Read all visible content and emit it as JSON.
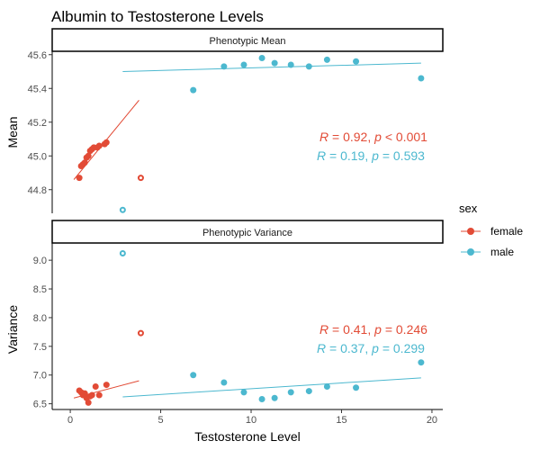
{
  "chart_data": {
    "type": "scatter",
    "title": "Albumin to Testosterone Levels",
    "xlabel": "Testosterone Level",
    "x_ticks": [
      0,
      5,
      10,
      15,
      20
    ],
    "xlim": [
      -1,
      20.6
    ],
    "legend": {
      "title": "sex",
      "placement": "right",
      "entries": [
        {
          "label": "female",
          "color": "#E24B36"
        },
        {
          "label": "male",
          "color": "#4CB8CF"
        }
      ]
    },
    "colors": {
      "female": "#E24B36",
      "male": "#4CB8CF"
    },
    "panels": [
      {
        "strip": "Phenotypic Mean",
        "ylabel": "Mean",
        "ylim": [
          44.66,
          45.62
        ],
        "y_ticks": [
          44.8,
          45.0,
          45.2,
          45.4,
          45.6
        ],
        "y_tick_labels": [
          "44.8",
          "45.0",
          "45.2",
          "45.4",
          "45.6"
        ],
        "female": {
          "points": [
            [
              0.5,
              44.87
            ],
            [
              0.6,
              44.94
            ],
            [
              0.7,
              44.95
            ],
            [
              0.8,
              44.96
            ],
            [
              0.9,
              44.99
            ],
            [
              1.0,
              45.0
            ],
            [
              1.1,
              45.03
            ],
            [
              1.2,
              45.04
            ],
            [
              1.3,
              45.05
            ],
            [
              1.5,
              45.05
            ],
            [
              1.6,
              45.06
            ],
            [
              1.9,
              45.07
            ],
            [
              2.0,
              45.08
            ]
          ],
          "open_points": [
            [
              3.9,
              44.87
            ]
          ],
          "fit": [
            [
              0.2,
              44.86
            ],
            [
              3.8,
              45.33
            ]
          ]
        },
        "male": {
          "points": [
            [
              6.8,
              45.39
            ],
            [
              8.5,
              45.53
            ],
            [
              9.6,
              45.54
            ],
            [
              10.6,
              45.58
            ],
            [
              11.3,
              45.55
            ],
            [
              12.2,
              45.54
            ],
            [
              13.2,
              45.53
            ],
            [
              14.2,
              45.57
            ],
            [
              15.8,
              45.56
            ],
            [
              19.4,
              45.46
            ]
          ],
          "open_points": [
            [
              2.9,
              44.68
            ]
          ],
          "fit": [
            [
              2.9,
              45.5
            ],
            [
              19.4,
              45.55
            ]
          ]
        },
        "stats": {
          "female": {
            "R": "0.92",
            "p_op": "<",
            "p": "0.001"
          },
          "male": {
            "R": "0.19",
            "p_op": "=",
            "p": "0.593"
          }
        }
      },
      {
        "strip": "Phenotypic Variance",
        "ylabel": "Variance",
        "ylim": [
          6.4,
          9.3
        ],
        "y_ticks": [
          6.5,
          7.0,
          7.5,
          8.0,
          8.5,
          9.0
        ],
        "y_tick_labels": [
          "6.5",
          "7.0",
          "7.5",
          "8.0",
          "8.5",
          "9.0"
        ],
        "female": {
          "points": [
            [
              0.5,
              6.73
            ],
            [
              0.6,
              6.7
            ],
            [
              0.7,
              6.65
            ],
            [
              0.8,
              6.68
            ],
            [
              0.9,
              6.6
            ],
            [
              1.0,
              6.52
            ],
            [
              1.1,
              6.63
            ],
            [
              1.2,
              6.65
            ],
            [
              1.4,
              6.8
            ],
            [
              1.6,
              6.65
            ],
            [
              2.0,
              6.83
            ]
          ],
          "open_points": [
            [
              3.9,
              7.73
            ]
          ],
          "fit": [
            [
              0.2,
              6.6
            ],
            [
              3.8,
              6.9
            ]
          ]
        },
        "male": {
          "points": [
            [
              6.8,
              7.0
            ],
            [
              8.5,
              6.87
            ],
            [
              9.6,
              6.7
            ],
            [
              10.6,
              6.58
            ],
            [
              11.3,
              6.6
            ],
            [
              12.2,
              6.7
            ],
            [
              13.2,
              6.72
            ],
            [
              14.2,
              6.8
            ],
            [
              15.8,
              6.78
            ],
            [
              19.4,
              7.22
            ]
          ],
          "open_points": [
            [
              2.9,
              9.12
            ]
          ],
          "fit": [
            [
              2.9,
              6.62
            ],
            [
              19.4,
              6.95
            ]
          ]
        },
        "stats": {
          "female": {
            "R": "0.41",
            "p_op": "=",
            "p": "0.246"
          },
          "male": {
            "R": "0.37",
            "p_op": "=",
            "p": "0.299"
          }
        }
      }
    ]
  }
}
